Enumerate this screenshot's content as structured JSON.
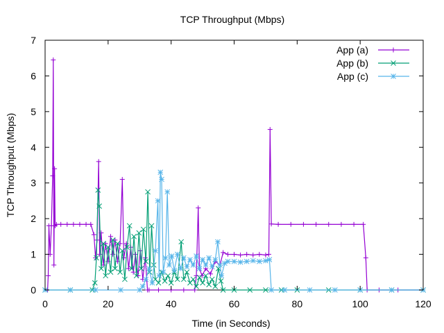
{
  "chart_data": {
    "type": "line",
    "title": "TCP Throughput (Mbps)",
    "xlabel": "Time (in Seconds)",
    "ylabel": "TCP Throughput (Mbps)",
    "xlim": [
      0,
      120
    ],
    "ylim": [
      0,
      7
    ],
    "xticks": [
      0,
      20,
      40,
      60,
      80,
      100,
      120
    ],
    "yticks": [
      0,
      1,
      2,
      3,
      4,
      5,
      6,
      7
    ],
    "grid": false,
    "legend_position": "top-right",
    "series": [
      {
        "name": "App (a)",
        "color": "#9400d3",
        "marker": "plus",
        "points": [
          [
            0,
            0
          ],
          [
            0.8,
            0
          ],
          [
            1.0,
            0.4
          ],
          [
            1.2,
            1.8
          ],
          [
            1.6,
            1.0
          ],
          [
            2.0,
            1.8
          ],
          [
            2.4,
            3.2
          ],
          [
            2.6,
            6.45
          ],
          [
            2.8,
            0.7
          ],
          [
            3.0,
            3.4
          ],
          [
            3.2,
            1.8
          ],
          [
            3.6,
            1.84
          ],
          [
            5,
            1.84
          ],
          [
            7,
            1.84
          ],
          [
            9,
            1.84
          ],
          [
            11,
            1.84
          ],
          [
            13,
            1.84
          ],
          [
            14.5,
            1.84
          ],
          [
            15.5,
            1.55
          ],
          [
            16.0,
            0.9
          ],
          [
            16.5,
            1.4
          ],
          [
            17.0,
            3.6
          ],
          [
            17.3,
            1.0
          ],
          [
            17.8,
            1.6
          ],
          [
            18.5,
            0.7
          ],
          [
            19.2,
            1.3
          ],
          [
            20,
            0.8
          ],
          [
            20.8,
            1.5
          ],
          [
            21.5,
            1.0
          ],
          [
            22.2,
            1.4
          ],
          [
            23,
            0.8
          ],
          [
            23.8,
            1.3
          ],
          [
            24.5,
            3.1
          ],
          [
            25.0,
            0.9
          ],
          [
            25.8,
            1.3
          ],
          [
            26.5,
            0.6
          ],
          [
            27.2,
            1.2
          ],
          [
            28,
            0.5
          ],
          [
            28.7,
            1.0
          ],
          [
            29.5,
            0.4
          ],
          [
            30.2,
            1.1
          ],
          [
            31,
            0.3
          ],
          [
            31.8,
            0.9
          ],
          [
            32.5,
            0
          ],
          [
            33,
            0
          ],
          [
            36,
            0
          ],
          [
            40,
            0
          ],
          [
            44,
            0
          ],
          [
            47.5,
            0
          ],
          [
            48.0,
            0.4
          ],
          [
            48.6,
            2.3
          ],
          [
            49.0,
            0.6
          ],
          [
            49.8,
            0.4
          ],
          [
            51,
            0.6
          ],
          [
            52.5,
            0.45
          ],
          [
            54,
            0.8
          ],
          [
            55.5,
            0.7
          ],
          [
            56.5,
            1.05
          ],
          [
            58,
            1.0
          ],
          [
            60,
            1.0
          ],
          [
            62,
            0.98
          ],
          [
            64,
            1.0
          ],
          [
            66,
            0.98
          ],
          [
            68,
            1.0
          ],
          [
            70,
            0.98
          ],
          [
            71.0,
            1.0
          ],
          [
            71.4,
            4.5
          ],
          [
            71.8,
            1.85
          ],
          [
            74,
            1.84
          ],
          [
            78,
            1.84
          ],
          [
            82,
            1.84
          ],
          [
            86,
            1.84
          ],
          [
            90,
            1.84
          ],
          [
            94,
            1.84
          ],
          [
            98,
            1.84
          ],
          [
            101,
            1.84
          ],
          [
            101.8,
            0.9
          ],
          [
            102.2,
            0
          ],
          [
            106,
            0
          ],
          [
            112,
            0
          ],
          [
            120,
            0
          ]
        ]
      },
      {
        "name": "App (b)",
        "color": "#009e73",
        "marker": "x",
        "points": [
          [
            0,
            0
          ],
          [
            8,
            0
          ],
          [
            15,
            0
          ],
          [
            15.8,
            0.2
          ],
          [
            16.3,
            0.9
          ],
          [
            16.8,
            2.8
          ],
          [
            17.2,
            2.35
          ],
          [
            17.8,
            0.6
          ],
          [
            18.5,
            1.3
          ],
          [
            19.2,
            0.4
          ],
          [
            20,
            1.2
          ],
          [
            20.8,
            0.5
          ],
          [
            21.5,
            1.4
          ],
          [
            22.2,
            0.6
          ],
          [
            23,
            1.3
          ],
          [
            23.8,
            0.5
          ],
          [
            24.5,
            1.1
          ],
          [
            25.3,
            0.3
          ],
          [
            26,
            1.2
          ],
          [
            26.8,
            1.8
          ],
          [
            27.5,
            0.6
          ],
          [
            28.2,
            1.5
          ],
          [
            29,
            0.4
          ],
          [
            29.8,
            1.6
          ],
          [
            30.5,
            0.6
          ],
          [
            31.2,
            1.7
          ],
          [
            32,
            0.8
          ],
          [
            32.6,
            2.75
          ],
          [
            33.2,
            0.5
          ],
          [
            33.8,
            1.8
          ],
          [
            34.5,
            0.7
          ],
          [
            35,
            0.3
          ],
          [
            36,
            0.2
          ],
          [
            37,
            0.5
          ],
          [
            38,
            0.25
          ],
          [
            39,
            0.4
          ],
          [
            40,
            0.2
          ],
          [
            41,
            0.5
          ],
          [
            42,
            0.3
          ],
          [
            43.2,
            1.35
          ],
          [
            44,
            0.3
          ],
          [
            45,
            0.5
          ],
          [
            46,
            0.2
          ],
          [
            47,
            0.3
          ],
          [
            48,
            0.1
          ],
          [
            49,
            0.35
          ],
          [
            50,
            0.2
          ],
          [
            51,
            0.4
          ],
          [
            52,
            0.15
          ],
          [
            53,
            0.3
          ],
          [
            54,
            0.1
          ],
          [
            55,
            0.6
          ],
          [
            55.8,
            0.25
          ],
          [
            56.5,
            0
          ],
          [
            60,
            0
          ],
          [
            65,
            0
          ],
          [
            70,
            0
          ],
          [
            75,
            0
          ],
          [
            80,
            0
          ],
          [
            90,
            0
          ],
          [
            100,
            0
          ],
          [
            110,
            0
          ],
          [
            120,
            0
          ]
        ]
      },
      {
        "name": "App (c)",
        "color": "#56b4e9",
        "marker": "star",
        "points": [
          [
            0,
            0
          ],
          [
            8,
            0
          ],
          [
            16,
            0
          ],
          [
            24,
            0
          ],
          [
            30,
            0
          ],
          [
            31,
            0.1
          ],
          [
            32,
            0.3
          ],
          [
            33,
            0.6
          ],
          [
            34,
            0.2
          ],
          [
            35,
            1.1
          ],
          [
            35.8,
            2.5
          ],
          [
            36.2,
            0.4
          ],
          [
            36.6,
            3.3
          ],
          [
            37.0,
            3.1
          ],
          [
            37.5,
            0.5
          ],
          [
            38.2,
            0.9
          ],
          [
            38.8,
            2.75
          ],
          [
            39.4,
            0.7
          ],
          [
            40.2,
            0.95
          ],
          [
            41,
            0.55
          ],
          [
            42,
            1.0
          ],
          [
            43,
            0.6
          ],
          [
            44,
            0.9
          ],
          [
            45,
            0.65
          ],
          [
            46,
            0.85
          ],
          [
            47,
            0.7
          ],
          [
            48,
            0.95
          ],
          [
            49,
            0.6
          ],
          [
            50,
            0.85
          ],
          [
            51,
            0.7
          ],
          [
            52,
            0.9
          ],
          [
            53,
            0.65
          ],
          [
            54,
            0.85
          ],
          [
            54.8,
            1.35
          ],
          [
            55.5,
            0.7
          ],
          [
            56,
            0.4
          ],
          [
            57,
            0.75
          ],
          [
            58,
            0.8
          ],
          [
            60,
            0.8
          ],
          [
            62,
            0.78
          ],
          [
            64,
            0.8
          ],
          [
            66,
            0.82
          ],
          [
            68,
            0.8
          ],
          [
            70,
            0.82
          ],
          [
            71.2,
            0.85
          ],
          [
            71.8,
            0
          ],
          [
            76,
            0
          ],
          [
            84,
            0
          ],
          [
            92,
            0
          ],
          [
            100,
            0
          ],
          [
            110,
            0
          ],
          [
            120,
            0
          ]
        ]
      }
    ]
  }
}
